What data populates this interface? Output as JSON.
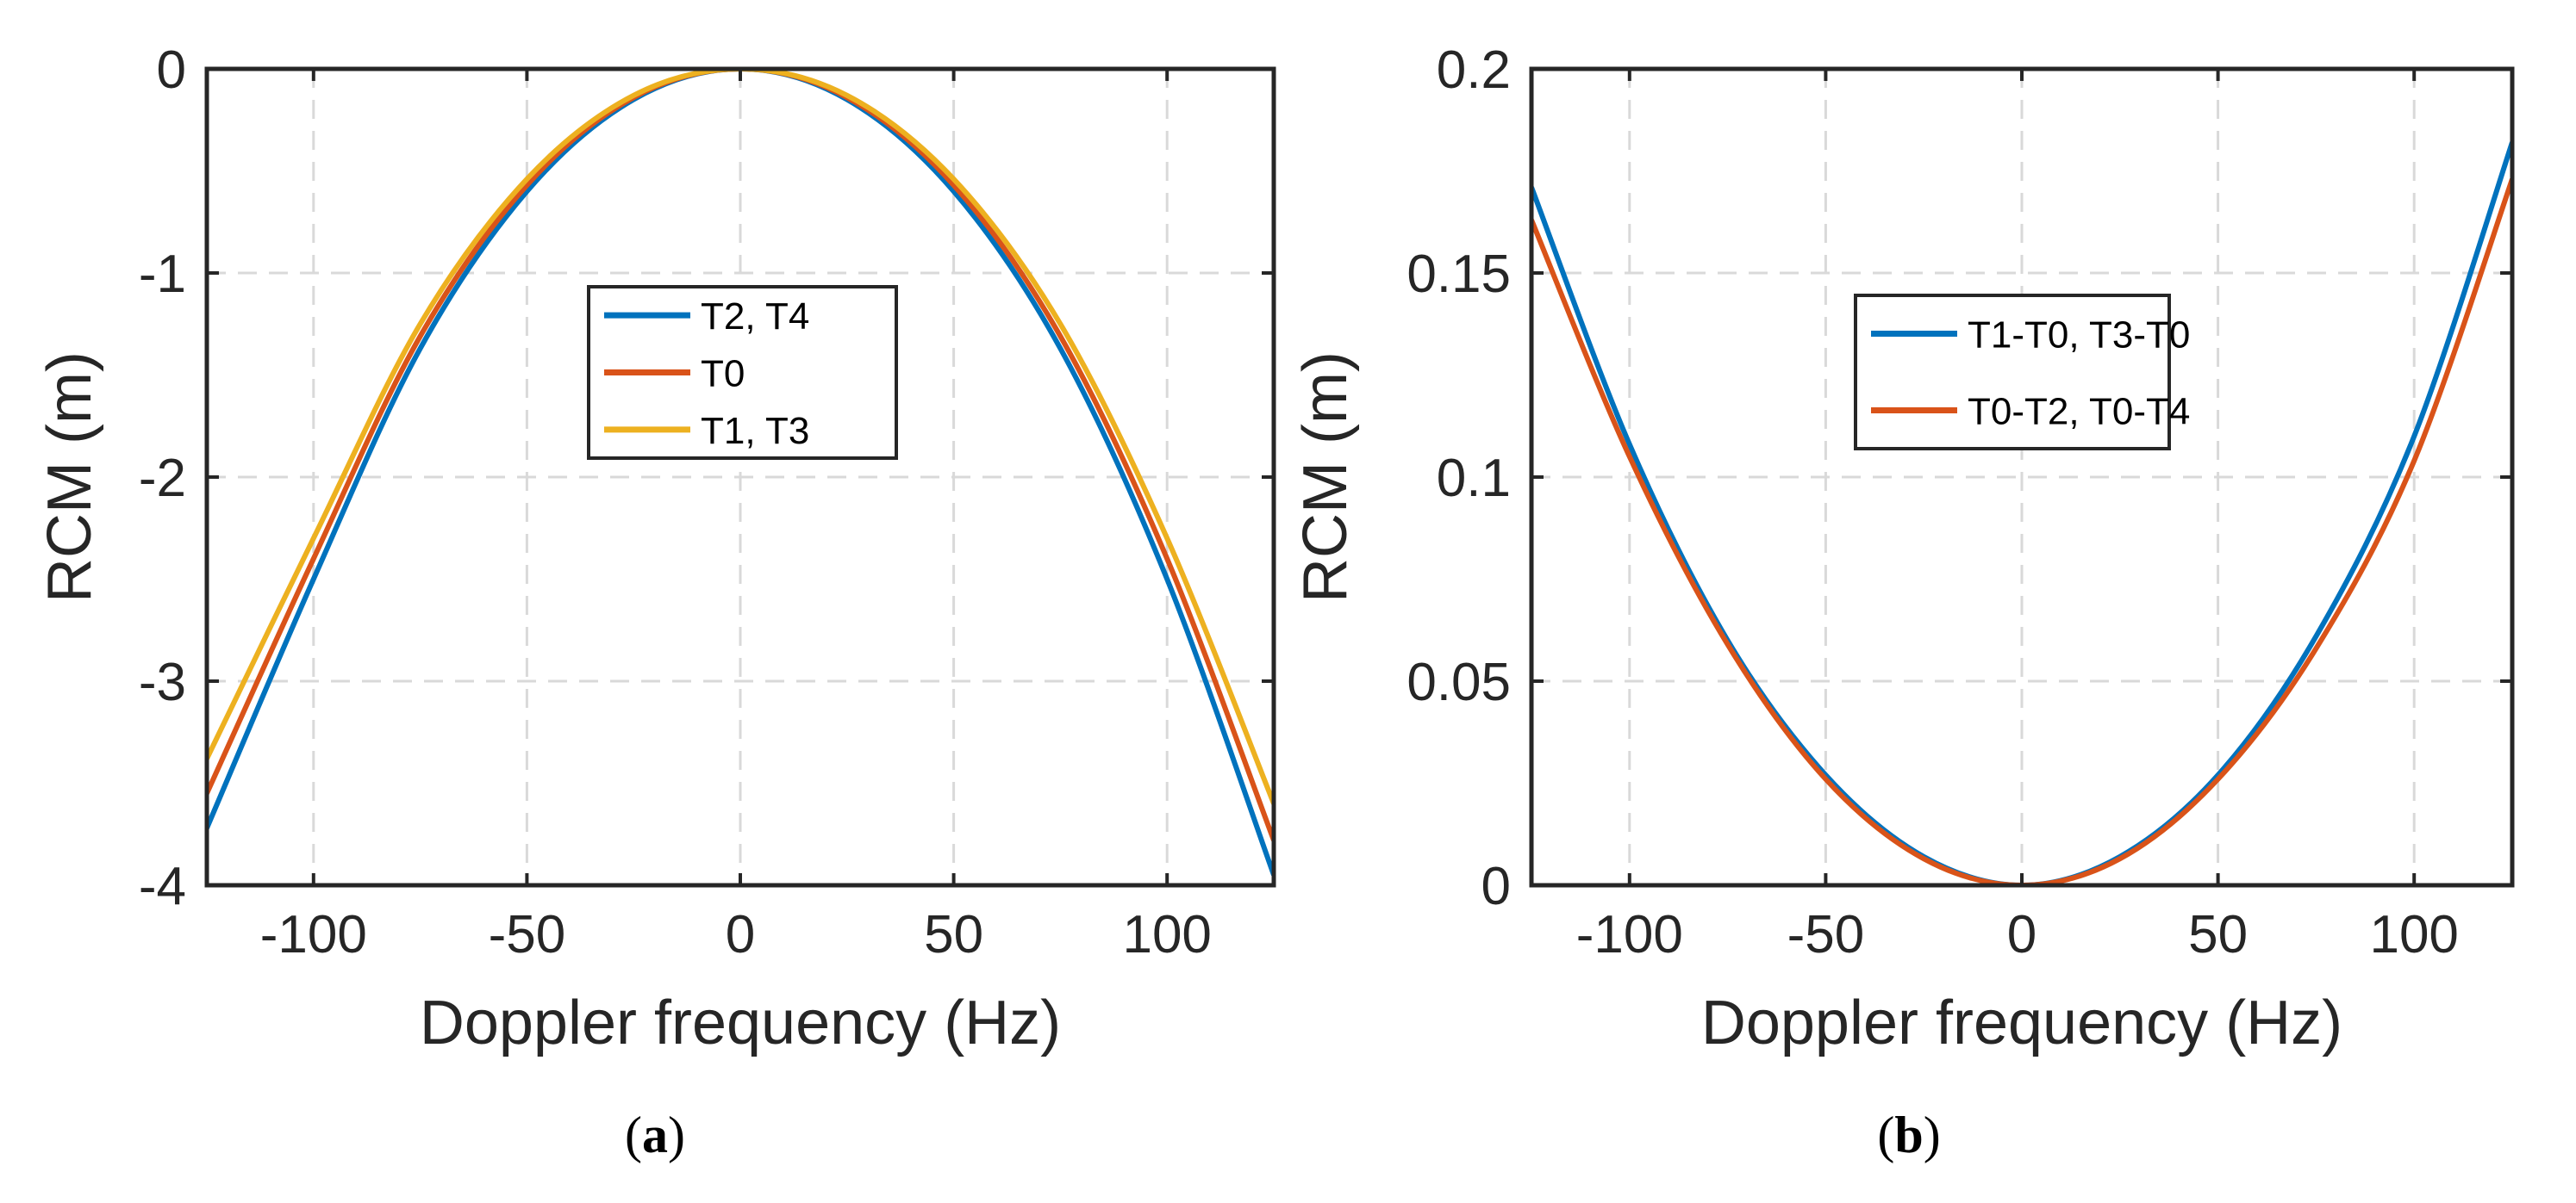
{
  "chart_data": [
    {
      "panel": "(a)",
      "caption_open": "(",
      "caption_letter": "a",
      "caption_close": ")",
      "type": "line",
      "xlabel": "Doppler frequency (Hz)",
      "ylabel": "RCM (m)",
      "xlim": [
        -125,
        125
      ],
      "ylim": [
        -4,
        0
      ],
      "xticks": [
        -100,
        -50,
        0,
        50,
        100
      ],
      "xtick_labels": [
        "-100",
        "-50",
        "0",
        "50",
        "100"
      ],
      "yticks": [
        -4,
        -3,
        -2,
        -1,
        0
      ],
      "ytick_labels": [
        "-4",
        "-3",
        "-2",
        "-1",
        "0"
      ],
      "grid": true,
      "legend_position": "center",
      "series": [
        {
          "name": "T2, T4",
          "color": "#0072BD",
          "x": [
            -125,
            -100,
            -75,
            -50,
            -25,
            0,
            25,
            50,
            75,
            100,
            125
          ],
          "y": [
            -3.72,
            -2.5,
            -1.37,
            -0.6,
            -0.15,
            0,
            -0.15,
            -0.6,
            -1.37,
            -2.5,
            -3.95
          ]
        },
        {
          "name": "T0",
          "color": "#D95319",
          "x": [
            -125,
            -100,
            -75,
            -50,
            -25,
            0,
            25,
            50,
            75,
            100,
            125
          ],
          "y": [
            -3.55,
            -2.4,
            -1.31,
            -0.57,
            -0.14,
            0,
            -0.14,
            -0.57,
            -1.31,
            -2.4,
            -3.78
          ]
        },
        {
          "name": "T1, T3",
          "color": "#EDB120",
          "x": [
            -125,
            -100,
            -75,
            -50,
            -25,
            0,
            25,
            50,
            75,
            100,
            125
          ],
          "y": [
            -3.38,
            -2.3,
            -1.25,
            -0.54,
            -0.13,
            0,
            -0.13,
            -0.54,
            -1.25,
            -2.3,
            -3.6
          ]
        }
      ]
    },
    {
      "panel": "(b)",
      "caption_open": "(",
      "caption_letter": "b",
      "caption_close": ")",
      "type": "line",
      "xlabel": "Doppler frequency (Hz)",
      "ylabel": "RCM (m)",
      "xlim": [
        -125,
        125
      ],
      "ylim": [
        0,
        0.2
      ],
      "xticks": [
        -100,
        -50,
        0,
        50,
        100
      ],
      "xtick_labels": [
        "-100",
        "-50",
        "0",
        "50",
        "100"
      ],
      "yticks": [
        0,
        0.05,
        0.1,
        0.15,
        0.2
      ],
      "ytick_labels": [
        "0",
        "0.05",
        "0.1",
        "0.15",
        "0.2"
      ],
      "grid": true,
      "legend_position": "center",
      "series": [
        {
          "name": "T1-T0, T3-T0",
          "color": "#0072BD",
          "x": [
            -125,
            -100,
            -75,
            -50,
            -25,
            0,
            25,
            50,
            75,
            100,
            125
          ],
          "y": [
            0.171,
            0.108,
            0.06,
            0.027,
            0.007,
            0,
            0.007,
            0.027,
            0.061,
            0.11,
            0.182
          ]
        },
        {
          "name": "T0-T2, T0-T4",
          "color": "#D95319",
          "x": [
            -125,
            -100,
            -75,
            -50,
            -25,
            0,
            25,
            50,
            75,
            100,
            125
          ],
          "y": [
            0.163,
            0.105,
            0.059,
            0.026,
            0.0065,
            0,
            0.0065,
            0.026,
            0.058,
            0.104,
            0.173
          ]
        }
      ]
    }
  ]
}
